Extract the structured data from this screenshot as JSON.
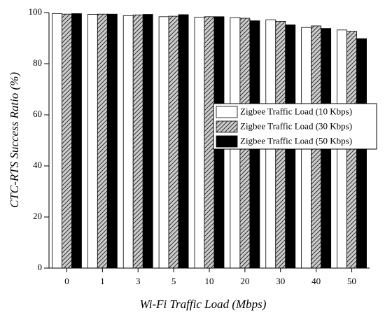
{
  "chart_data": {
    "type": "bar",
    "x_label": "Wi-Fi Traffic Load (Mbps)",
    "y_label": "CTC-RTS Success Ratio (%)",
    "categories": [
      "0",
      "1",
      "3",
      "5",
      "10",
      "20",
      "30",
      "40",
      "50"
    ],
    "series": [
      {
        "name": "Zigbee Traffic Load (10 Kbps)",
        "color": "#ffffff",
        "values": [
          99.6,
          99.3,
          98.8,
          98.4,
          98.2,
          98.0,
          97.2,
          94.2,
          93.2
        ]
      },
      {
        "name": "Zigbee Traffic Load (30 Kbps)",
        "color": "#cccccc",
        "pattern": "hatch",
        "values": [
          99.4,
          99.4,
          99.1,
          98.6,
          98.4,
          97.8,
          96.6,
          94.8,
          92.7
        ]
      },
      {
        "name": "Zigbee Traffic Load (50 Kbps)",
        "color": "#000000",
        "values": [
          99.6,
          99.4,
          99.3,
          99.2,
          98.4,
          96.8,
          95.2,
          93.8,
          89.8
        ]
      }
    ],
    "ylim": [
      0,
      100
    ],
    "yticks": [
      0,
      20,
      40,
      60,
      80,
      100
    ],
    "legend": "right"
  }
}
